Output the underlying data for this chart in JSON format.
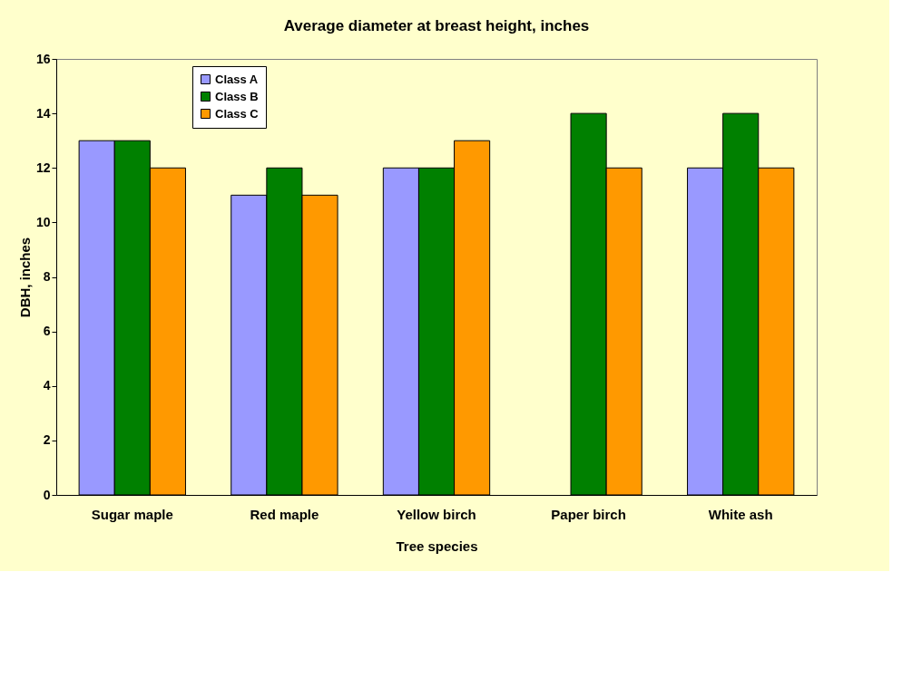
{
  "chart_data": {
    "type": "bar",
    "title": "Average diameter at breast height, inches",
    "xlabel": "Tree species",
    "ylabel": "DBH, inches",
    "categories": [
      "Sugar maple",
      "Red maple",
      "Yellow birch",
      "Paper birch",
      "White ash"
    ],
    "series": [
      {
        "name": "Class A",
        "color": "#9999ff",
        "values": [
          13,
          11,
          12,
          null,
          12
        ]
      },
      {
        "name": "Class B",
        "color": "#008000",
        "values": [
          13,
          12,
          12,
          14,
          14
        ]
      },
      {
        "name": "Class C",
        "color": "#ff9900",
        "values": [
          12,
          11,
          13,
          12,
          12
        ]
      }
    ],
    "ylim": [
      0,
      16
    ],
    "yticks": [
      0,
      2,
      4,
      6,
      8,
      10,
      12,
      14,
      16
    ],
    "grid": false,
    "legend": "top left"
  }
}
